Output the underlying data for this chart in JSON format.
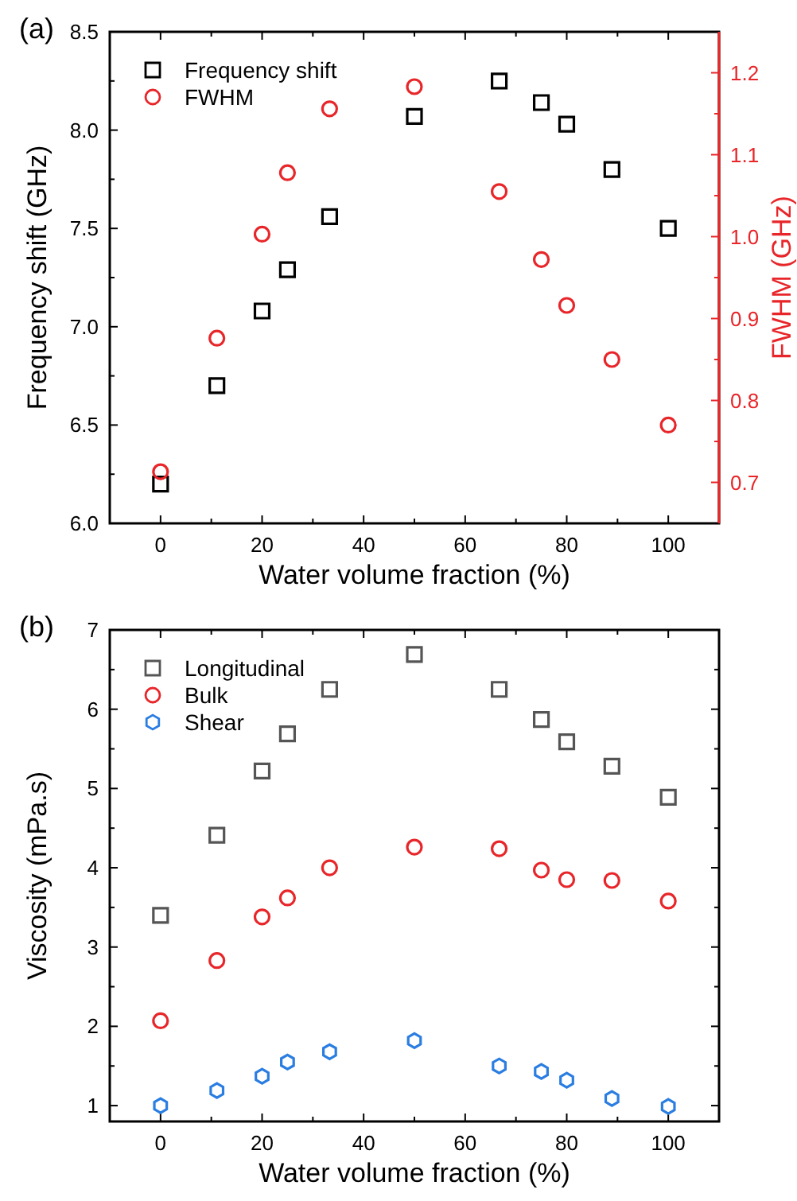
{
  "chart_data": [
    {
      "type": "scatter",
      "title": "(a)",
      "xlabel": "Water volume fraction (%)",
      "ylabel": "Frequency shift (GHz)",
      "y2label": "FWHM (GHz)",
      "x": [
        0,
        11.1,
        20,
        25,
        33.3,
        50,
        66.7,
        75,
        80,
        88.9,
        100
      ],
      "xlim": [
        -10,
        110
      ],
      "xticks": [
        0,
        {
          "value": 10,
          "label": null
        },
        20,
        {
          "value": 30,
          "label": null
        },
        40,
        {
          "value": 50,
          "label": null
        },
        60,
        {
          "value": 70,
          "label": null
        },
        80,
        {
          "value": 90,
          "label": null
        },
        100
      ],
      "ylim": [
        6,
        8.5
      ],
      "yticks": [
        {
          "value": 6,
          "label": "6.0"
        },
        {
          "value": 6.25,
          "label": null
        },
        {
          "value": 6.5,
          "label": "6.5"
        },
        {
          "value": 6.75,
          "label": null
        },
        {
          "value": 7,
          "label": "7.0"
        },
        {
          "value": 7.25,
          "label": null
        },
        {
          "value": 7.5,
          "label": "7.5"
        },
        {
          "value": 7.75,
          "label": null
        },
        {
          "value": 8,
          "label": "8.0"
        },
        {
          "value": 8.25,
          "label": null
        },
        {
          "value": 8.5,
          "label": "8.5"
        }
      ],
      "y2lim": [
        0.65,
        1.25
      ],
      "y2ticks": [
        0.7,
        {
          "value": 0.75,
          "label": null
        },
        0.8,
        {
          "value": 0.85,
          "label": null
        },
        0.9,
        {
          "value": 0.95,
          "label": null
        },
        {
          "value": 1,
          "label": "1.0"
        },
        {
          "value": 1.05,
          "label": null
        },
        1.1,
        {
          "value": 1.15,
          "label": null
        },
        1.2
      ],
      "legend": "top left",
      "series": [
        {
          "name": "Frequency shift",
          "color": "#000000",
          "marker": "square",
          "values": [
            6.2,
            6.7,
            7.08,
            7.29,
            7.56,
            8.07,
            8.25,
            8.14,
            8.03,
            7.8,
            7.5
          ]
        },
        {
          "name": "FWHM",
          "color": "#e8262a",
          "marker": "circle",
          "axis": "y2",
          "values": [
            0.713,
            0.876,
            1.003,
            1.078,
            1.156,
            1.183,
            1.055,
            0.972,
            0.916,
            0.85,
            0.77
          ]
        }
      ]
    },
    {
      "type": "scatter",
      "title": "(b)",
      "xlabel": "Water volume fraction (%)",
      "ylabel": "Viscosity (mPa.s)",
      "x": [
        0,
        11.1,
        20,
        25,
        33.3,
        50,
        66.7,
        75,
        80,
        88.9,
        100
      ],
      "xlim": [
        -10,
        110
      ],
      "xticks": [
        0,
        {
          "value": 10,
          "label": null
        },
        20,
        {
          "value": 30,
          "label": null
        },
        40,
        {
          "value": 50,
          "label": null
        },
        60,
        {
          "value": 70,
          "label": null
        },
        80,
        {
          "value": 90,
          "label": null
        },
        100
      ],
      "ylim": [
        0.8,
        7
      ],
      "yticks": [
        1,
        {
          "value": 1.5,
          "label": null
        },
        2,
        {
          "value": 2.5,
          "label": null
        },
        3,
        {
          "value": 3.5,
          "label": null
        },
        4,
        {
          "value": 4.5,
          "label": null
        },
        5,
        {
          "value": 5.5,
          "label": null
        },
        6,
        {
          "value": 6.5,
          "label": null
        },
        7
      ],
      "legend": "top left",
      "series": [
        {
          "name": "Longitudinal",
          "color": "#555555",
          "marker": "square",
          "values": [
            3.4,
            4.41,
            5.22,
            5.69,
            6.25,
            6.69,
            6.25,
            5.87,
            5.59,
            5.28,
            4.89
          ]
        },
        {
          "name": "Bulk",
          "color": "#e8262a",
          "marker": "circle",
          "values": [
            2.07,
            2.83,
            3.38,
            3.62,
            4.0,
            4.26,
            4.24,
            3.97,
            3.85,
            3.84,
            3.58
          ]
        },
        {
          "name": "Shear",
          "color": "#2a7de1",
          "values": [
            1.0,
            1.19,
            1.37,
            1.55,
            1.68,
            1.82,
            1.5,
            1.43,
            1.32,
            1.09,
            0.99
          ]
        }
      ]
    }
  ]
}
